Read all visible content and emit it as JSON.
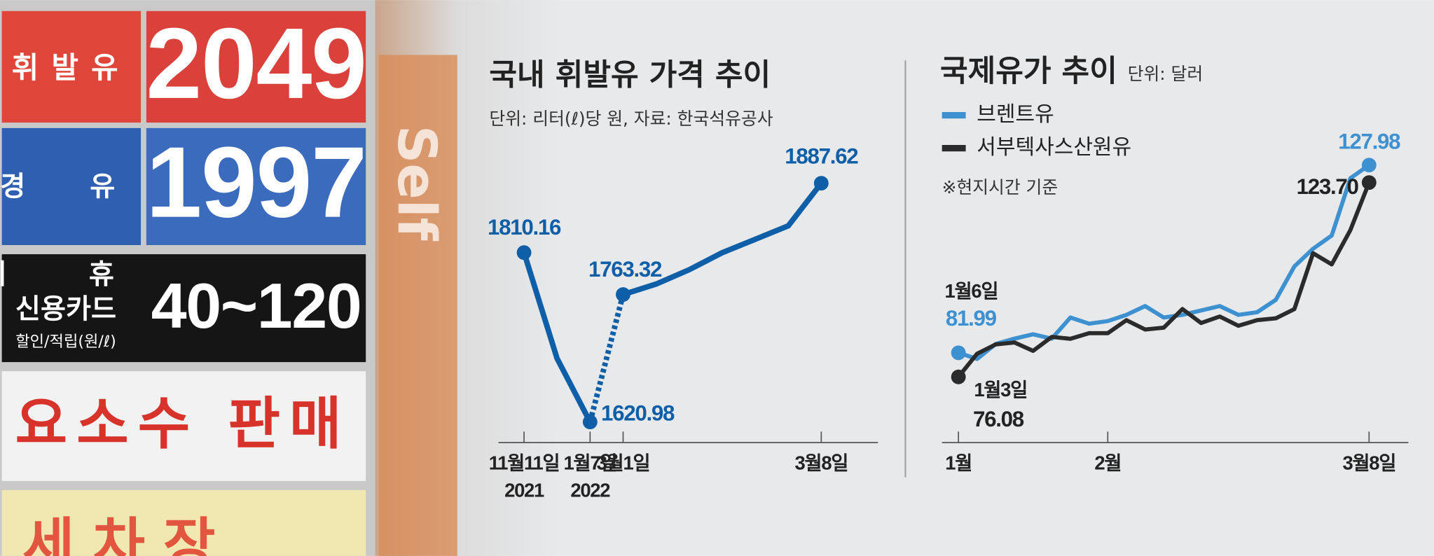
{
  "photo": {
    "gasoline_label": "휘발유",
    "gasoline_price": "2049",
    "diesel_label": "경 유",
    "diesel_price": "1997",
    "card_label_1": "제 휴",
    "card_label_2": "신용카드",
    "card_discount": "40~120",
    "card_note": "할인/적립(원/ℓ)",
    "urea": "요소수 판매",
    "car_wash": "세차장",
    "self": "Self"
  },
  "chart_data": [
    {
      "type": "line",
      "title": "국내 휘발유 가격 추이",
      "subtitle": "단위: 리터(ℓ)당 원, 자료: 한국석유공사",
      "categories": [
        "11월11일",
        null,
        "1월7일",
        "3월1일",
        null,
        null,
        null,
        null,
        null,
        "3월8일"
      ],
      "year_labels": [
        "2021",
        null,
        "2022",
        null,
        null,
        null,
        null,
        null,
        null,
        null
      ],
      "series": [
        {
          "name": "휘발유",
          "color": "#0f5fa8",
          "values": [
            1810.16,
            1692,
            1620.98,
            1763.32,
            1775,
            1791,
            1810,
            1825,
            1840,
            1887.62
          ]
        }
      ],
      "dotted_from_index": 2,
      "ylim": [
        1598,
        1939
      ]
    },
    {
      "type": "line",
      "title": "국제유가 추이",
      "subtitle": "단위: 달러",
      "note": "※현지시간 기준",
      "categories": [
        "1월",
        null,
        null,
        null,
        null,
        null,
        null,
        null,
        "2월",
        null,
        null,
        null,
        null,
        null,
        null,
        null,
        null,
        null,
        null,
        null,
        null,
        null,
        "3월8일"
      ],
      "annotations": [
        "1월6일",
        "1월3일"
      ],
      "legend": "top-left",
      "series": [
        {
          "name": "브렌트유",
          "color": "#3e91d1",
          "values": [
            81.99,
            80.48,
            84.15,
            85.45,
            86.53,
            85.45,
            90.63,
            89.12,
            89.76,
            91.28,
            93.44,
            90.63,
            91.28,
            92.36,
            93.44,
            91.28,
            91.93,
            94.95,
            103.16,
            107.48,
            110.72,
            124.76,
            127.98
          ]
        },
        {
          "name": "서부텍사스산원유",
          "color": "#2b2b2b",
          "values": [
            76.08,
            81.77,
            84.05,
            84.51,
            82.46,
            85.88,
            85.42,
            86.79,
            86.79,
            89.98,
            87.7,
            88.15,
            92.71,
            89.29,
            90.88,
            88.61,
            89.98,
            90.43,
            92.71,
            106.38,
            103.65,
            112.07,
            123.7
          ],
          "value_labels": [
            null,
            null,
            null,
            null,
            null,
            null,
            null,
            null,
            null,
            null,
            null,
            null,
            null,
            null,
            null,
            null,
            null,
            null,
            null,
            null,
            null,
            null,
            "123.70"
          ]
        }
      ],
      "ylim": [
        60,
        146
      ]
    }
  ]
}
